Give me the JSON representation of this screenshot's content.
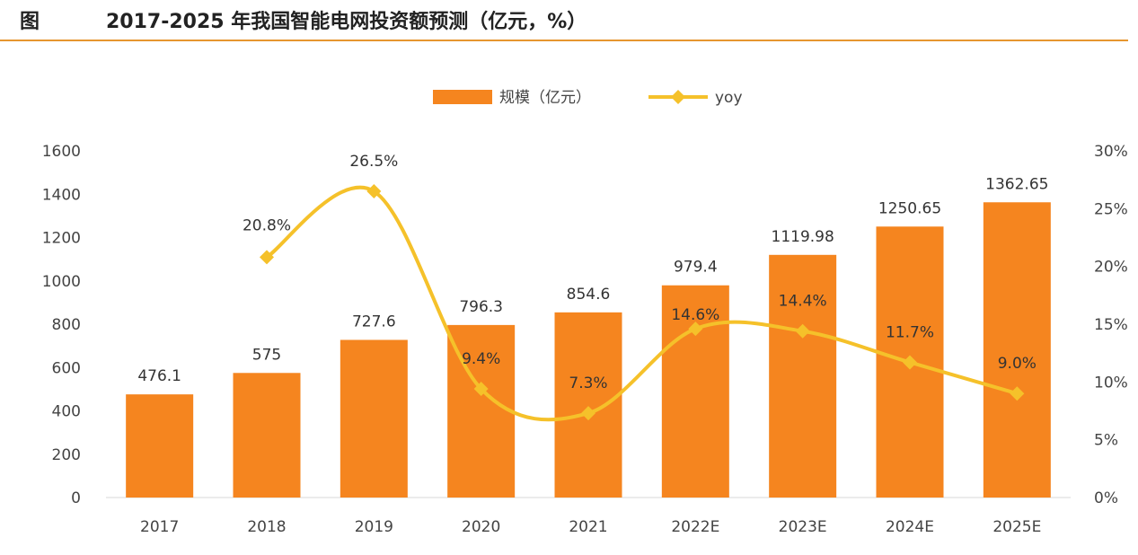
{
  "header": {
    "figure_label": "图",
    "title": "2017-2025 年我国智能电网投资额预测（亿元，%）"
  },
  "chart_data": {
    "type": "bar",
    "categories": [
      "2017",
      "2018",
      "2019",
      "2020",
      "2021",
      "2022E",
      "2023E",
      "2024E",
      "2025E"
    ],
    "series": [
      {
        "name": "规模（亿元）",
        "type": "bar",
        "axis": "left",
        "values": [
          476.1,
          575,
          727.6,
          796.3,
          854.6,
          979.4,
          1119.98,
          1250.65,
          1362.65
        ],
        "labels": [
          "476.1",
          "575",
          "727.6",
          "796.3",
          "854.6",
          "979.4",
          "1119.98",
          "1250.65",
          "1362.65"
        ],
        "color": "#f5851f"
      },
      {
        "name": "yoy",
        "type": "line",
        "axis": "right",
        "values": [
          null,
          20.8,
          26.5,
          9.4,
          7.3,
          14.6,
          14.4,
          11.7,
          9.0
        ],
        "labels": [
          "",
          "20.8%",
          "26.5%",
          "9.4%",
          "7.3%",
          "14.6%",
          "14.4%",
          "11.7%",
          "9.0%"
        ],
        "color": "#f5c12a"
      }
    ],
    "y_left": {
      "min": 0,
      "max": 1600,
      "step": 200,
      "ticks": [
        "0",
        "200",
        "400",
        "600",
        "800",
        "1000",
        "1200",
        "1400",
        "1600"
      ]
    },
    "y_right": {
      "min": 0,
      "max": 30,
      "step": 5,
      "ticks": [
        "0%",
        "5%",
        "10%",
        "15%",
        "20%",
        "25%",
        "30%"
      ]
    },
    "grid": false,
    "legend_position": "top-center"
  }
}
